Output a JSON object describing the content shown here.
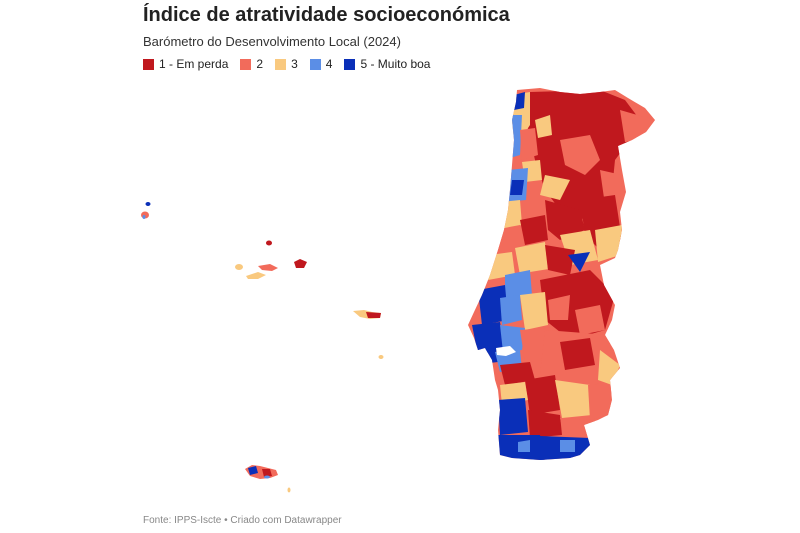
{
  "title": "Índice de atratividade socioeconómica",
  "subtitle": "Barómetro do Desenvolvimento Local (2024)",
  "legend": [
    {
      "label": "1 - Em perda",
      "color": "#c0181e"
    },
    {
      "label": "2",
      "color": "#f26b5b"
    },
    {
      "label": "3",
      "color": "#f9c97f"
    },
    {
      "label": "4",
      "color": "#5b8ee6"
    },
    {
      "label": "5 - Muito boa",
      "color": "#0a2fb8"
    }
  ],
  "source": "Fonte: IPPS-Iscte • Criado com Datawrapper",
  "regions": [
    "Portugal continental",
    "Açores",
    "Madeira"
  ]
}
